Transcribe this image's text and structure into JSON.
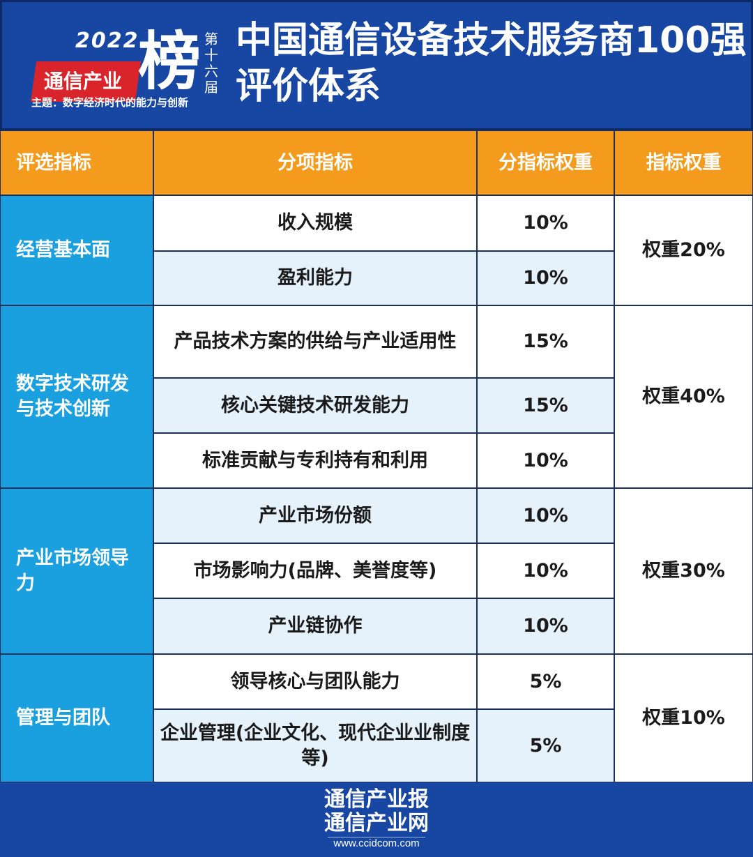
{
  "header": {
    "logo": {
      "year": "2022",
      "name": "通信产业",
      "bang": "榜",
      "edition": "第十六届",
      "theme": "主题：数字经济时代的能力与创新"
    },
    "title_line1": "中国通信设备技术服务商100强",
    "title_line2": "评价体系"
  },
  "table": {
    "columns": [
      "评选指标",
      "分项指标",
      "分指标权重",
      "指标权重"
    ],
    "groups": [
      {
        "name": "经营基本面",
        "weight": "权重20%",
        "items": [
          {
            "name": "收入规模",
            "weight": "10%"
          },
          {
            "name": "盈利能力",
            "weight": "10%"
          }
        ]
      },
      {
        "name": "数字技术研发与技术创新",
        "weight": "权重40%",
        "items": [
          {
            "name": "产品技术方案的供给与产业适用性",
            "weight": "15%"
          },
          {
            "name": "核心关键技术研发能力",
            "weight": "15%"
          },
          {
            "name": "标准贡献与专利持有和利用",
            "weight": "10%"
          }
        ]
      },
      {
        "name": "产业市场领导力",
        "weight": "权重30%",
        "items": [
          {
            "name": "产业市场份额",
            "weight": "10%"
          },
          {
            "name": "市场影响力(品牌、美誉度等)",
            "weight": "10%"
          },
          {
            "name": "产业链协作",
            "weight": "10%"
          }
        ]
      },
      {
        "name": "管理与团队",
        "weight": "权重10%",
        "items": [
          {
            "name": "领导核心与团队能力",
            "weight": "5%"
          },
          {
            "name": "企业管理(企业文化、现代企业业制度等)",
            "weight": "5%"
          }
        ]
      }
    ]
  },
  "footer": {
    "line1": "通信产业报",
    "line2": "通信产业网",
    "url": "www.ccidcom.com"
  },
  "colors": {
    "background": "#1747a3",
    "header_row": "#f49b1d",
    "group_cell": "#1ba0df",
    "alt_row": "#e5f1fb"
  }
}
